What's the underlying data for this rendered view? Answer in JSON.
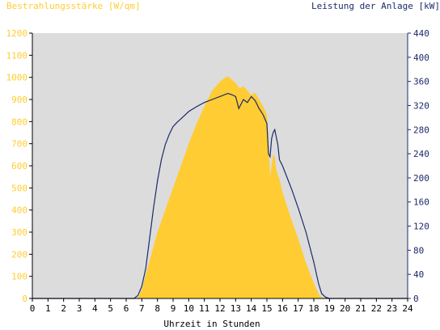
{
  "chart_data": {
    "type": "area",
    "ylabel_left": "Bestrahlungsstärke [W/qm]",
    "ylabel_right": "Leistung der Anlage [kW]",
    "xlabel": "Uhrzeit in Stunden",
    "xlim": [
      0,
      24
    ],
    "ylim_left": [
      0,
      1200
    ],
    "ylim_right": [
      0,
      440
    ],
    "x_ticks": [
      "0",
      "1",
      "2",
      "3",
      "4",
      "5",
      "6",
      "7",
      "8",
      "9",
      "10",
      "11",
      "12",
      "13",
      "14",
      "15",
      "16",
      "17",
      "18",
      "19",
      "20",
      "21",
      "22",
      "23",
      "24"
    ],
    "y_ticks_left": [
      "0",
      "100",
      "200",
      "300",
      "400",
      "500",
      "600",
      "700",
      "800",
      "900",
      "1000",
      "1100",
      "1200"
    ],
    "y_ticks_right": [
      "0",
      "40",
      "80",
      "120",
      "160",
      "200",
      "240",
      "280",
      "320",
      "360",
      "400",
      "440"
    ],
    "grid": false,
    "series": [
      {
        "name": "Bestrahlungsstärke [W/qm]",
        "axis": "left",
        "style": "area",
        "color": "#FFCC33",
        "x": [
          0,
          6.5,
          6.75,
          7.0,
          7.25,
          7.5,
          8.0,
          8.5,
          9.0,
          9.5,
          10.0,
          10.5,
          11.0,
          11.5,
          12.0,
          12.25,
          12.5,
          12.75,
          13.0,
          13.25,
          13.5,
          13.75,
          14.0,
          14.25,
          14.5,
          14.75,
          15.0,
          15.1,
          15.2,
          15.3,
          15.4,
          15.5,
          15.6,
          15.8,
          16.0,
          16.5,
          17.0,
          17.5,
          18.0,
          18.3,
          18.5,
          18.75,
          19.0,
          24
        ],
        "values": [
          0,
          0,
          5,
          40,
          110,
          170,
          300,
          400,
          500,
          600,
          700,
          790,
          870,
          940,
          980,
          995,
          1005,
          990,
          975,
          950,
          960,
          940,
          920,
          930,
          900,
          870,
          830,
          720,
          550,
          600,
          650,
          640,
          580,
          540,
          480,
          370,
          270,
          160,
          70,
          20,
          5,
          0,
          0,
          0
        ]
      },
      {
        "name": "Leistung der Anlage [kW]",
        "axis": "right",
        "style": "line",
        "color": "#1B2A6B",
        "x": [
          0,
          6.5,
          6.75,
          7.0,
          7.25,
          7.5,
          7.75,
          8.0,
          8.25,
          8.5,
          8.75,
          9.0,
          9.25,
          9.5,
          10.0,
          10.5,
          11.0,
          11.5,
          12.0,
          12.5,
          12.75,
          13.0,
          13.1,
          13.2,
          13.5,
          13.75,
          14.0,
          14.25,
          14.5,
          14.75,
          15.0,
          15.1,
          15.2,
          15.3,
          15.4,
          15.5,
          15.7,
          15.8,
          16.0,
          16.3,
          16.6,
          17.0,
          17.5,
          18.0,
          18.3,
          18.5,
          18.75,
          19.0,
          24
        ],
        "values": [
          0,
          0,
          5,
          20,
          50,
          100,
          150,
          195,
          230,
          255,
          272,
          285,
          292,
          298,
          310,
          318,
          325,
          330,
          335,
          340,
          338,
          335,
          325,
          315,
          330,
          325,
          335,
          328,
          315,
          305,
          290,
          240,
          235,
          265,
          275,
          280,
          255,
          230,
          220,
          200,
          180,
          150,
          110,
          60,
          25,
          8,
          2,
          0,
          0
        ]
      }
    ]
  }
}
